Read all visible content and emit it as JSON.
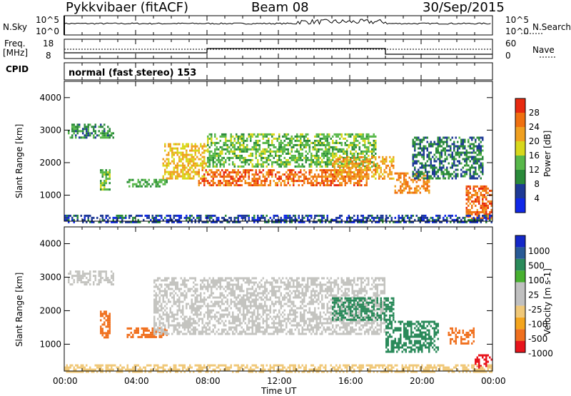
{
  "header": {
    "radar": "Pykkvibaer (fitACF)",
    "beam": "Beam 08",
    "date": "30/Sep/2015"
  },
  "noise_panel": {
    "left_label": "N.Sky",
    "right_label": "N.Search",
    "ticks_left": [
      "10^5",
      "10^0"
    ],
    "ticks_right": [
      "10^5",
      "10^0"
    ]
  },
  "freq_panel": {
    "left_label_1": "Freq.",
    "left_label_2": "[MHz]",
    "left_ticks": [
      "18",
      "8"
    ],
    "right_label": "Nave",
    "right_ticks": [
      "60",
      "0"
    ],
    "cpid_label": "CPID"
  },
  "cpid_panel": {
    "text": "normal (fast stereo) 153"
  },
  "x_axis": {
    "ticks": [
      "00:00",
      "04:00",
      "08:00",
      "12:00",
      "16:00",
      "20:00",
      "00:00"
    ],
    "label": "Time UT"
  },
  "colors": {
    "power": [
      "#1028e8",
      "#1e3a96",
      "#2a8a3a",
      "#58b84a",
      "#d8d81c",
      "#f0a020",
      "#f07010",
      "#e82a10"
    ],
    "velocity": [
      "#e8141c",
      "#f0701e",
      "#f4a51e",
      "#f0c878",
      "#c0c0c0",
      "#c0c0c0",
      "#48b030",
      "#2a8a5a",
      "#285a96",
      "#1428c8"
    ],
    "gray": "#c4c4c0"
  },
  "chart_data": [
    {
      "type": "heatmap",
      "name": "power",
      "ylabel": "Slant Range [km]",
      "yticks": [
        "1000",
        "2000",
        "3000",
        "4000"
      ],
      "ylim": [
        200,
        4500
      ],
      "xlim": [
        0,
        24
      ],
      "colorbar_label": "Power [dB]",
      "colorbar_ticks": [
        "4",
        "8",
        "12",
        "16",
        "20",
        "24",
        "28"
      ],
      "colorbar_range": [
        0,
        30
      ],
      "regions": [
        {
          "t0": 0.2,
          "t1": 2.8,
          "r0": 2800,
          "r1": 3200,
          "level": 10
        },
        {
          "t0": 2.0,
          "t1": 2.6,
          "r0": 1200,
          "r1": 1800,
          "level": 14
        },
        {
          "t0": 3.5,
          "t1": 5.8,
          "r0": 1300,
          "r1": 1500,
          "level": 12
        },
        {
          "t0": 5.5,
          "t1": 8.0,
          "r0": 1500,
          "r1": 2600,
          "level": 20
        },
        {
          "t0": 7.5,
          "t1": 17.0,
          "r0": 1300,
          "r1": 1800,
          "level": 26
        },
        {
          "t0": 8.0,
          "t1": 17.5,
          "r0": 1900,
          "r1": 2900,
          "level": 14
        },
        {
          "t0": 15.0,
          "t1": 18.5,
          "r0": 1500,
          "r1": 2200,
          "level": 22
        },
        {
          "t0": 18.5,
          "t1": 20.5,
          "r0": 1100,
          "r1": 1700,
          "level": 24
        },
        {
          "t0": 19.5,
          "t1": 23.5,
          "r0": 1500,
          "r1": 2800,
          "level": 9
        },
        {
          "t0": 22.5,
          "t1": 24.0,
          "r0": 300,
          "r1": 1300,
          "level": 26
        },
        {
          "t0": 0.0,
          "t1": 24.0,
          "r0": 200,
          "r1": 400,
          "level": 6
        }
      ]
    },
    {
      "type": "heatmap",
      "name": "velocity",
      "ylabel": "Slant Range [km]",
      "yticks": [
        "1000",
        "2000",
        "3000",
        "4000"
      ],
      "ylim": [
        200,
        4500
      ],
      "xlim": [
        0,
        24
      ],
      "colorbar_label": "Velocity [m s-1]",
      "colorbar_ticks": [
        "1000",
        "500",
        "100",
        "25",
        "-25",
        "-100",
        "-500",
        "-1000"
      ],
      "regions": [
        {
          "t0": 0.2,
          "t1": 2.8,
          "r0": 2800,
          "r1": 3200,
          "level": 0
        },
        {
          "t0": 2.0,
          "t1": 2.6,
          "r0": 1200,
          "r1": 2000,
          "level": -150
        },
        {
          "t0": 3.5,
          "t1": 5.8,
          "r0": 1200,
          "r1": 1500,
          "level": -150
        },
        {
          "t0": 5.0,
          "t1": 18.0,
          "r0": 1300,
          "r1": 3000,
          "level": 0
        },
        {
          "t0": 15.0,
          "t1": 18.5,
          "r0": 1700,
          "r1": 2400,
          "level": 200
        },
        {
          "t0": 18.0,
          "t1": 21.0,
          "r0": 800,
          "r1": 1700,
          "level": 400
        },
        {
          "t0": 21.5,
          "t1": 23.0,
          "r0": 1000,
          "r1": 1500,
          "level": -300
        },
        {
          "t0": 23.0,
          "t1": 24.0,
          "r0": 300,
          "r1": 700,
          "level": -600
        },
        {
          "t0": 0.0,
          "t1": 24.0,
          "r0": 200,
          "r1": 400,
          "level": -40
        }
      ]
    }
  ]
}
